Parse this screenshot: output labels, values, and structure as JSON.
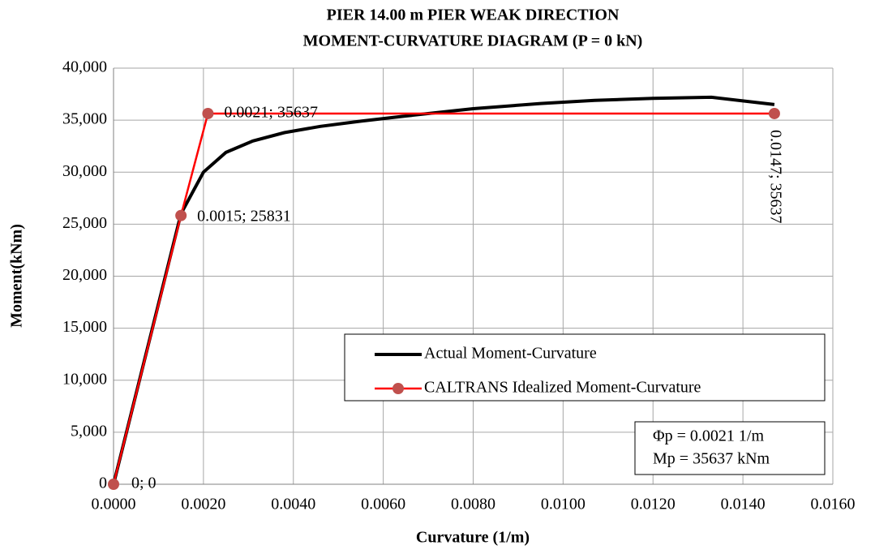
{
  "chart_data": {
    "type": "line",
    "title_lines": [
      "PIER 14.00 m PIER WEAK DIRECTION",
      "MOMENT-CURVATURE DIAGRAM (P = 0 kN)"
    ],
    "x_label": "Curvature (1/m)",
    "y_label": "Moment(kNm)",
    "xlim": [
      0,
      0.016
    ],
    "ylim": [
      0,
      40000
    ],
    "xticks": [
      {
        "value": 0,
        "label": "0.0000"
      },
      {
        "value": 0.002,
        "label": "0.0020"
      },
      {
        "value": 0.004,
        "label": "0.0040"
      },
      {
        "value": 0.006,
        "label": "0.0060"
      },
      {
        "value": 0.008,
        "label": "0.0080"
      },
      {
        "value": 0.01,
        "label": "0.0100"
      },
      {
        "value": 0.012,
        "label": "0.0120"
      },
      {
        "value": 0.014,
        "label": "0.0140"
      },
      {
        "value": 0.016,
        "label": "0.0160"
      }
    ],
    "yticks": [
      0,
      {
        "value": 5000,
        "label": "5,000"
      },
      {
        "value": 10000,
        "label": "10,000"
      },
      {
        "value": 15000,
        "label": "15,000"
      },
      {
        "value": 20000,
        "label": "20,000"
      },
      {
        "value": 25000,
        "label": "25,000"
      },
      {
        "value": 30000,
        "label": "30,000"
      },
      {
        "value": 35000,
        "label": "35,000"
      },
      {
        "value": 40000,
        "label": "40,000"
      }
    ],
    "grid": true,
    "series": [
      {
        "name": "Actual Moment-Curvature",
        "color": "#000000",
        "markers": false,
        "x": [
          0,
          0.0015,
          0.002,
          0.0025,
          0.0031,
          0.0038,
          0.0046,
          0.0055,
          0.0065,
          0.008,
          0.0095,
          0.0107,
          0.012,
          0.0133,
          0.0147
        ],
        "values": [
          0,
          26000,
          30000,
          31900,
          33000,
          33800,
          34400,
          34900,
          35400,
          36100,
          36600,
          36900,
          37100,
          37200,
          36500
        ]
      },
      {
        "name": "CALTRANS Idealized Moment-Curvature",
        "color": "#ff0000",
        "marker_color": "#c0504d",
        "markers": true,
        "x": [
          0,
          0.0015,
          0.0021,
          0.0147
        ],
        "values": [
          0,
          25831,
          35637,
          35637
        ],
        "value_labels": [
          "0; 0",
          "0.0015; 25831",
          "0.0021; 35637",
          "0.0147; 35637"
        ]
      }
    ],
    "annotations": [
      "Φp = 0.0021  1/m",
      "Mp = 35637 kNm"
    ]
  }
}
